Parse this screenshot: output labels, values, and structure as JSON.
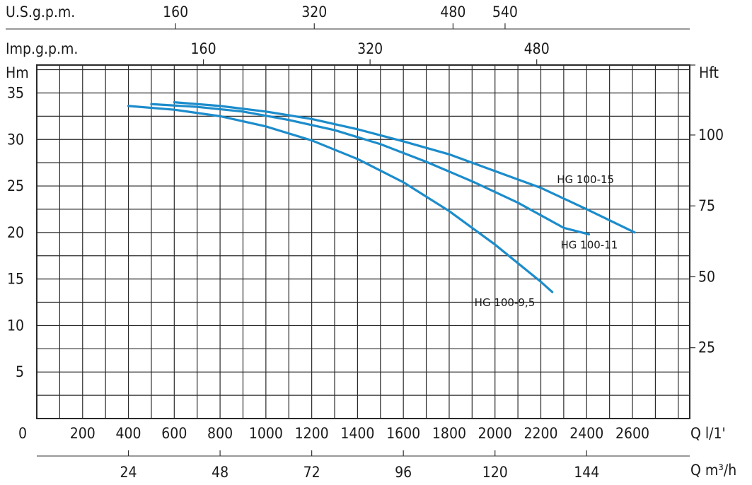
{
  "chart_data": {
    "type": "line",
    "colors": {
      "series": "#1c8ccb",
      "grid": "#2a2a2a"
    },
    "x": {
      "label": "Q l/1'",
      "range": [
        0,
        2850
      ],
      "ticks": [
        0,
        200,
        400,
        600,
        800,
        1000,
        1200,
        1400,
        1600,
        1800,
        2000,
        2200,
        2400,
        2600
      ]
    },
    "y": {
      "label": "Hm",
      "range": [
        0,
        38
      ],
      "ticks": [
        5,
        10,
        15,
        20,
        25,
        30,
        35
      ]
    },
    "axis_y_right": {
      "label": "Hft",
      "ticks": [
        25,
        50,
        75,
        100
      ]
    },
    "axis_x_top1": {
      "label": "U.S.g.p.m.",
      "ticks": [
        160,
        320,
        480,
        540
      ]
    },
    "axis_x_top2": {
      "label": "Imp.g.p.m.",
      "ticks": [
        160,
        320,
        480
      ]
    },
    "axis_x_bottom2": {
      "label": "Q m³/h",
      "ticks": [
        24,
        48,
        72,
        96,
        120,
        144
      ]
    },
    "grid": true,
    "series": [
      {
        "name": "HG 100-9,5",
        "points": [
          [
            400,
            33.6
          ],
          [
            600,
            33.2
          ],
          [
            800,
            32.5
          ],
          [
            1000,
            31.4
          ],
          [
            1200,
            29.9
          ],
          [
            1400,
            27.9
          ],
          [
            1600,
            25.4
          ],
          [
            1800,
            22.3
          ],
          [
            2000,
            18.7
          ],
          [
            2200,
            14.7
          ],
          [
            2250,
            13.6
          ]
        ]
      },
      {
        "name": "HG 100-11",
        "points": [
          [
            500,
            33.8
          ],
          [
            700,
            33.5
          ],
          [
            900,
            33.0
          ],
          [
            1100,
            32.1
          ],
          [
            1300,
            31.0
          ],
          [
            1500,
            29.5
          ],
          [
            1700,
            27.6
          ],
          [
            1900,
            25.5
          ],
          [
            2100,
            23.2
          ],
          [
            2300,
            20.5
          ],
          [
            2410,
            19.8
          ]
        ]
      },
      {
        "name": "HG 100-15",
        "points": [
          [
            600,
            34.0
          ],
          [
            800,
            33.6
          ],
          [
            1000,
            33.0
          ],
          [
            1200,
            32.2
          ],
          [
            1400,
            31.1
          ],
          [
            1600,
            29.8
          ],
          [
            1800,
            28.4
          ],
          [
            2000,
            26.6
          ],
          [
            2200,
            24.8
          ],
          [
            2400,
            22.5
          ],
          [
            2610,
            20.0
          ]
        ]
      }
    ]
  }
}
